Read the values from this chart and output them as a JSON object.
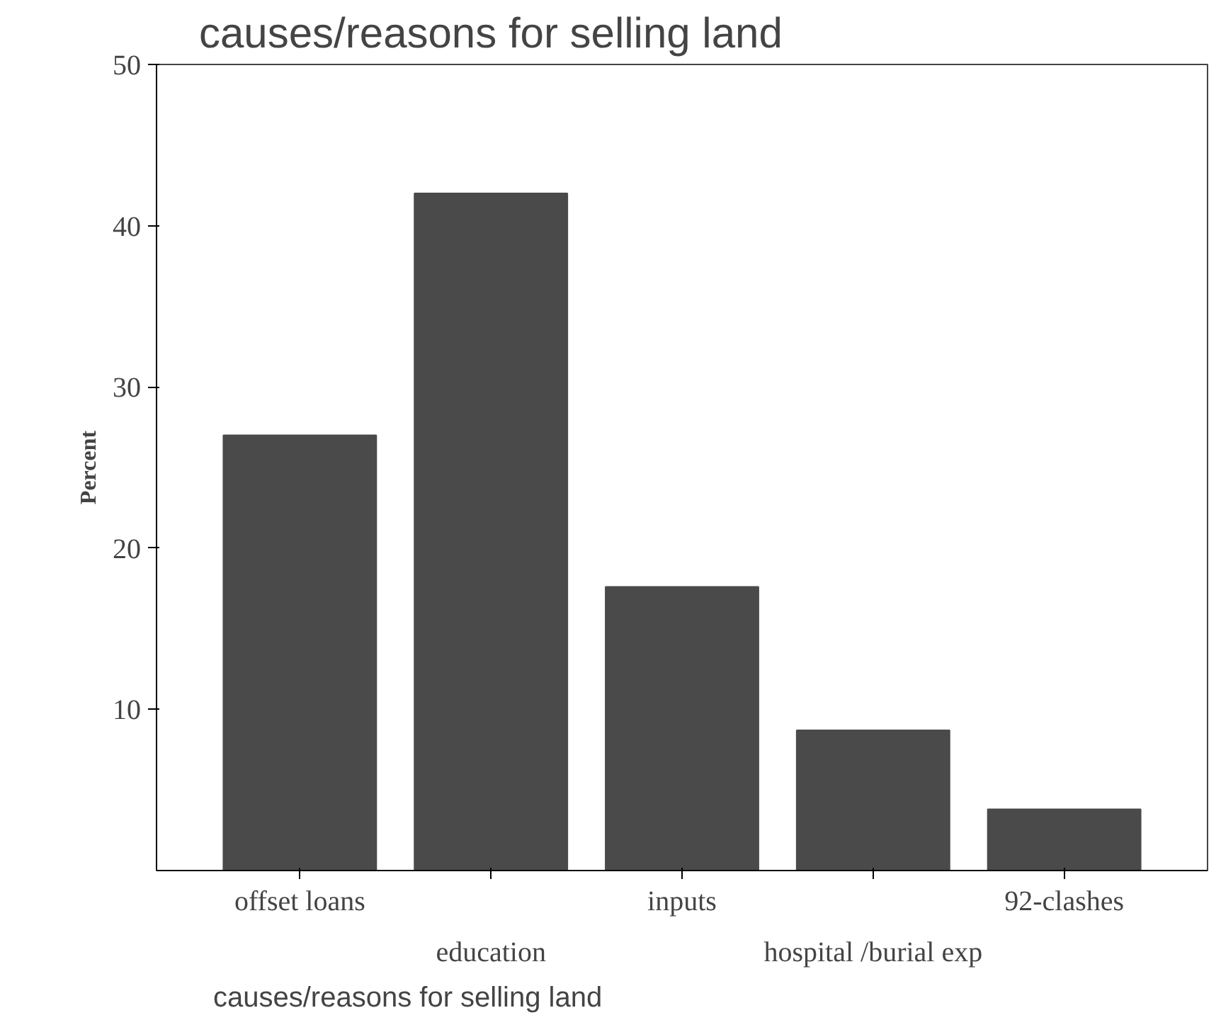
{
  "chart_data": {
    "type": "bar",
    "title": "causes/reasons for selling  land",
    "xlabel": "causes/reasons for selling land",
    "ylabel": "Percent",
    "categories": [
      "offset loans",
      "education",
      "inputs",
      "hospital /burial exp",
      "92-clashes"
    ],
    "values": [
      27,
      42,
      17.6,
      8.7,
      3.8
    ],
    "color": "#4a4a4a",
    "ylim": [
      0,
      50
    ],
    "yticks": [
      10,
      20,
      30,
      40,
      50
    ],
    "grid": false
  }
}
